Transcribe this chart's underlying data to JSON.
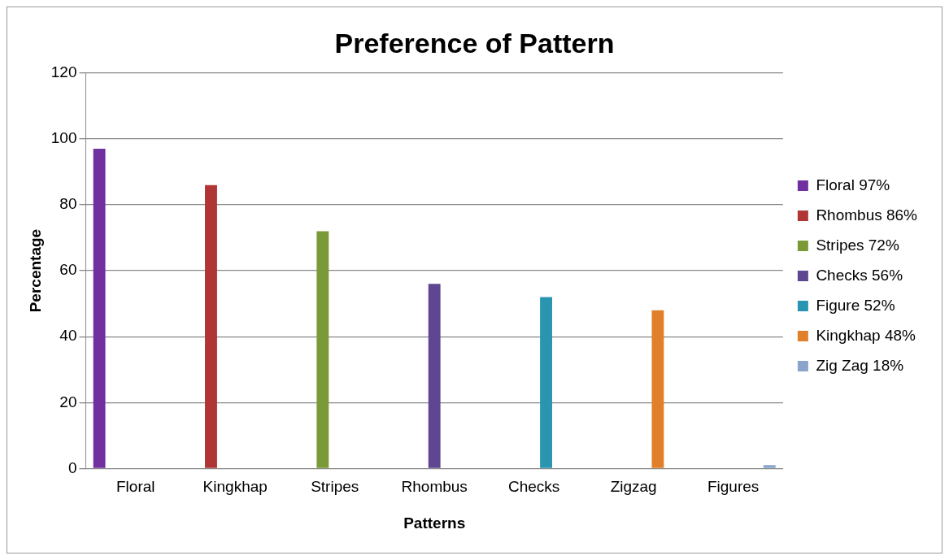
{
  "chart_data": {
    "type": "bar",
    "title": "Preference of Pattern",
    "xlabel": "Patterns",
    "ylabel": "Percentage",
    "categories": [
      "Floral",
      "Kingkhap",
      "Stripes",
      "Rhombus",
      "Checks",
      "Zigzag",
      "Figures"
    ],
    "series": [
      {
        "name": "Floral 97%",
        "color": "#7030a0",
        "values": [
          97,
          null,
          null,
          null,
          null,
          null,
          null
        ]
      },
      {
        "name": "Rhombus 86%",
        "color": "#b03535",
        "values": [
          null,
          86,
          null,
          null,
          null,
          null,
          null
        ]
      },
      {
        "name": "Stripes 72%",
        "color": "#7a9a38",
        "values": [
          null,
          null,
          72,
          null,
          null,
          null,
          null
        ]
      },
      {
        "name": "Checks 56%",
        "color": "#5e4690",
        "values": [
          null,
          null,
          null,
          56,
          null,
          null,
          null
        ]
      },
      {
        "name": "Figure 52%",
        "color": "#2a95b0",
        "values": [
          null,
          null,
          null,
          null,
          52,
          null,
          null
        ]
      },
      {
        "name": "Kingkhap 48%",
        "color": "#e0802a",
        "values": [
          null,
          null,
          null,
          null,
          null,
          48,
          null
        ]
      },
      {
        "name": "Zig Zag 18%",
        "color": "#8aa4cc",
        "values": [
          null,
          null,
          null,
          null,
          null,
          null,
          1
        ]
      }
    ],
    "ylim": [
      0,
      120
    ],
    "yticks": [
      0,
      20,
      40,
      60,
      80,
      100,
      120
    ],
    "grid": "y",
    "legend": "right"
  }
}
